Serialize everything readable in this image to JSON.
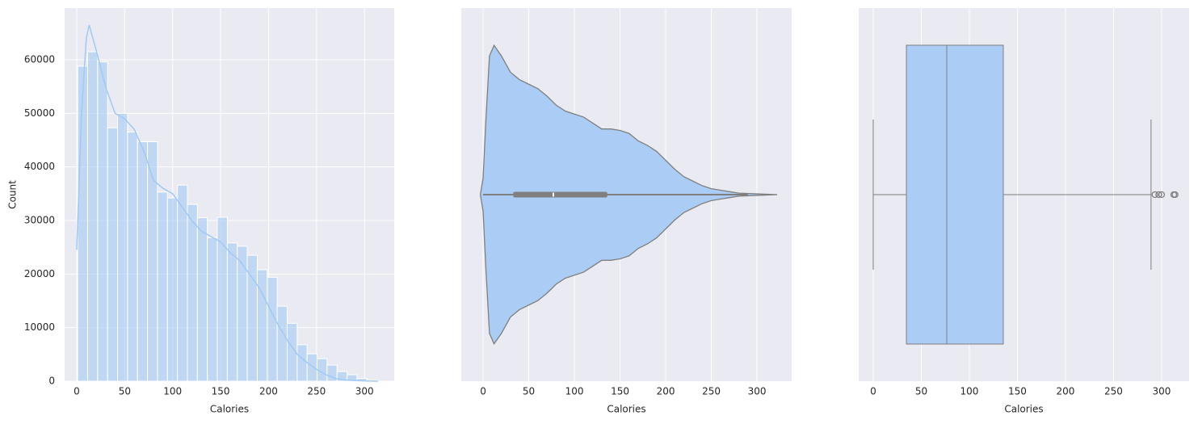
{
  "chart_data": [
    {
      "type": "histogram",
      "xlabel": "Calories",
      "ylabel": "Count",
      "color": "#a1c9f4",
      "bins": [
        1,
        11.4,
        21.8,
        32.2,
        42.6,
        53,
        63.4,
        73.8,
        84.2,
        94.6,
        105,
        115.4,
        125.8,
        136.2,
        146.6,
        157,
        167.4,
        177.8,
        188.2,
        198.6,
        209,
        219.4,
        229.8,
        240.2,
        250.6,
        261,
        271.4,
        281.8,
        292.2,
        302.6,
        313
      ],
      "values": [
        58800,
        61500,
        59600,
        47300,
        50000,
        46500,
        44700,
        44700,
        35300,
        34200,
        36600,
        33000,
        30500,
        26800,
        30600,
        25800,
        25200,
        23500,
        20800,
        19400,
        14000,
        10800,
        6800,
        5100,
        4200,
        3000,
        1800,
        1200,
        500,
        200
      ],
      "kde": {
        "x": [
          0,
          5,
          10,
          13,
          20,
          30,
          40,
          50,
          60,
          70,
          80,
          90,
          100,
          110,
          120,
          130,
          140,
          150,
          160,
          170,
          180,
          190,
          200,
          210,
          220,
          230,
          240,
          250,
          260,
          270,
          280,
          300,
          314
        ],
        "values": [
          24500,
          50000,
          64000,
          66500,
          62000,
          55000,
          50000,
          49000,
          47000,
          43000,
          37500,
          36000,
          35000,
          32500,
          30000,
          28000,
          27000,
          26000,
          24000,
          22500,
          20000,
          17500,
          14000,
          10500,
          7500,
          5000,
          3500,
          2200,
          1200,
          500,
          200,
          50,
          0
        ]
      },
      "xlim": [
        -12.6,
        331
      ],
      "xticks": [
        0,
        50,
        100,
        150,
        200,
        250,
        300
      ],
      "ylim": [
        0,
        69650
      ],
      "yticks": [
        0,
        10000,
        20000,
        30000,
        40000,
        50000,
        60000
      ],
      "grid": true
    },
    {
      "type": "violin",
      "xlabel": "Calories",
      "color": "#abcdf5",
      "edgecolor": "#7f7f7f",
      "x": [
        -3,
        0,
        3,
        7,
        12,
        20,
        30,
        40,
        50,
        60,
        70,
        80,
        90,
        100,
        110,
        120,
        130,
        140,
        150,
        160,
        170,
        180,
        190,
        200,
        210,
        220,
        230,
        240,
        250,
        260,
        270,
        280,
        300,
        322
      ],
      "density": [
        0,
        0.11,
        0.49,
        0.93,
        1,
        0.93,
        0.82,
        0.77,
        0.74,
        0.71,
        0.66,
        0.6,
        0.56,
        0.54,
        0.52,
        0.48,
        0.44,
        0.44,
        0.43,
        0.41,
        0.36,
        0.33,
        0.29,
        0.23,
        0.17,
        0.12,
        0.09,
        0.06,
        0.04,
        0.03,
        0.02,
        0.01,
        0.005,
        0
      ],
      "box": {
        "whislo": 0,
        "q1": 33,
        "med": 77,
        "q3": 136,
        "whishi": 290
      },
      "xlim": [
        -23.9,
        338
      ],
      "xticks": [
        0,
        50,
        100,
        150,
        200,
        250,
        300
      ],
      "grid": true
    },
    {
      "type": "box",
      "xlabel": "Calories",
      "color": "#abcdf5",
      "edgecolor": "#7f7f7f",
      "whislo": 0,
      "q1": 34.5,
      "med": 76.5,
      "q3": 135.3,
      "whishi": 289,
      "fliers": [
        293,
        297,
        300,
        312.6,
        314
      ],
      "xlim": [
        -15.1,
        328.6
      ],
      "xticks": [
        0,
        50,
        100,
        150,
        200,
        250,
        300
      ],
      "grid": true
    }
  ]
}
